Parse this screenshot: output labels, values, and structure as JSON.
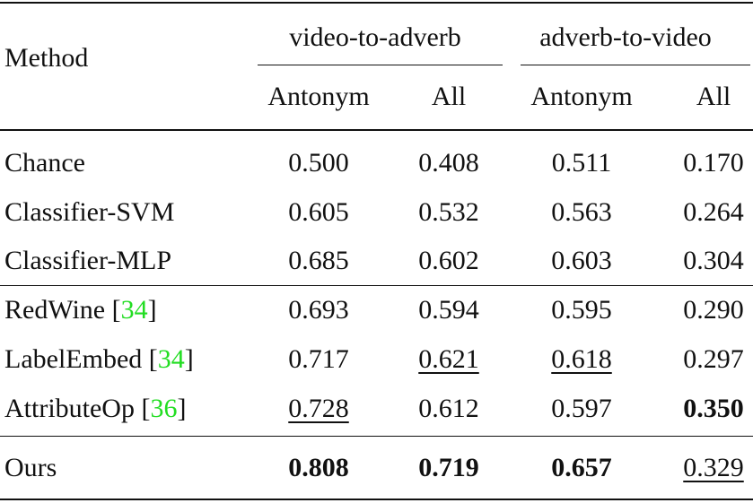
{
  "table": {
    "header": {
      "method": "Method",
      "groups": [
        "video-to-adverb",
        "adverb-to-video"
      ],
      "columns": [
        "Antonym",
        "All",
        "Antonym",
        "All"
      ]
    },
    "ref_color": "#22dd22",
    "rows": [
      {
        "method": {
          "text": "Chance"
        },
        "values": [
          "0.500",
          "0.408",
          "0.511",
          "0.170"
        ]
      },
      {
        "method": {
          "text": "Classifier-SVM"
        },
        "values": [
          "0.605",
          "0.532",
          "0.563",
          "0.264"
        ]
      },
      {
        "method": {
          "text": "Classifier-MLP"
        },
        "values": [
          "0.685",
          "0.602",
          "0.603",
          "0.304"
        ]
      },
      {
        "method": {
          "text": "RedWine [",
          "ref": "34",
          "close": "]"
        },
        "values": [
          "0.693",
          "0.594",
          "0.595",
          "0.290"
        ]
      },
      {
        "method": {
          "text": "LabelEmbed [",
          "ref": "34",
          "close": "]"
        },
        "values": [
          "0.717",
          "0.621",
          "0.618",
          "0.297"
        ],
        "underline": [
          1,
          2
        ]
      },
      {
        "method": {
          "text": "AttributeOp [",
          "ref": "36",
          "close": "]"
        },
        "values": [
          "0.728",
          "0.612",
          "0.597",
          "0.350"
        ],
        "underline": [
          0
        ],
        "bold": [
          3
        ]
      },
      {
        "method": {
          "text": "Ours"
        },
        "values": [
          "0.808",
          "0.719",
          "0.657",
          "0.329"
        ],
        "bold": [
          0,
          1,
          2
        ],
        "underline": [
          3
        ]
      }
    ]
  }
}
